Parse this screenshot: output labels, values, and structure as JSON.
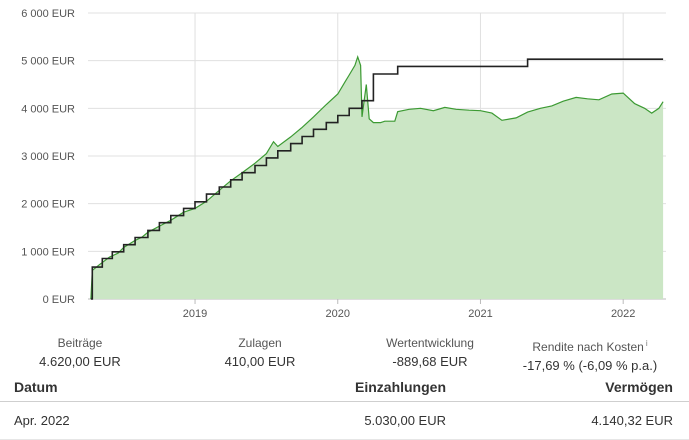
{
  "chart_data": {
    "type": "area",
    "y_ticks": [
      "6 000 EUR",
      "5 000 EUR",
      "4 000 EUR",
      "3 000 EUR",
      "2 000 EUR",
      "1 000 EUR",
      "0 EUR"
    ],
    "y_tick_values": [
      6000,
      5000,
      4000,
      3000,
      2000,
      1000,
      0
    ],
    "x_ticks": [
      "2019",
      "2020",
      "2021",
      "2022"
    ],
    "x_tick_values": [
      2019.0,
      2020.0,
      2021.0,
      2022.0
    ],
    "xlim": [
      2018.25,
      2022.3
    ],
    "ylim": [
      0,
      6000
    ],
    "grid": true,
    "legend": "none",
    "colors": {
      "area_fill": "#cbe6c5",
      "value_line": "#3c9a33",
      "deposits_line": "#222222",
      "grid": "#e0e0e0"
    },
    "series": [
      {
        "type": "step",
        "points": [
          [
            2018.27,
            0
          ],
          [
            2018.28,
            670
          ],
          [
            2018.35,
            850
          ],
          [
            2018.42,
            990
          ],
          [
            2018.5,
            1140
          ],
          [
            2018.58,
            1290
          ],
          [
            2018.67,
            1440
          ],
          [
            2018.75,
            1600
          ],
          [
            2018.83,
            1750
          ],
          [
            2018.92,
            1900
          ],
          [
            2019.0,
            2040
          ],
          [
            2019.08,
            2200
          ],
          [
            2019.17,
            2350
          ],
          [
            2019.25,
            2500
          ],
          [
            2019.33,
            2650
          ],
          [
            2019.42,
            2800
          ],
          [
            2019.5,
            2960
          ],
          [
            2019.58,
            3110
          ],
          [
            2019.67,
            3260
          ],
          [
            2019.75,
            3410
          ],
          [
            2019.83,
            3560
          ],
          [
            2019.92,
            3700
          ],
          [
            2020.0,
            3850
          ],
          [
            2020.08,
            4000
          ],
          [
            2020.17,
            4160
          ],
          [
            2020.25,
            4720
          ],
          [
            2020.42,
            4880
          ],
          [
            2021.33,
            5030
          ],
          [
            2022.28,
            5030
          ]
        ]
      },
      {
        "type": "area",
        "points": [
          [
            2018.27,
            0
          ],
          [
            2018.28,
            600
          ],
          [
            2018.33,
            720
          ],
          [
            2018.4,
            880
          ],
          [
            2018.46,
            960
          ],
          [
            2018.5,
            1080
          ],
          [
            2018.58,
            1230
          ],
          [
            2018.63,
            1300
          ],
          [
            2018.67,
            1400
          ],
          [
            2018.75,
            1530
          ],
          [
            2018.83,
            1650
          ],
          [
            2018.92,
            1820
          ],
          [
            2019.0,
            1900
          ],
          [
            2019.08,
            2050
          ],
          [
            2019.17,
            2280
          ],
          [
            2019.25,
            2480
          ],
          [
            2019.33,
            2650
          ],
          [
            2019.42,
            2850
          ],
          [
            2019.5,
            3050
          ],
          [
            2019.55,
            3300
          ],
          [
            2019.58,
            3200
          ],
          [
            2019.67,
            3400
          ],
          [
            2019.75,
            3600
          ],
          [
            2019.83,
            3820
          ],
          [
            2019.92,
            4080
          ],
          [
            2020.0,
            4300
          ],
          [
            2020.05,
            4550
          ],
          [
            2020.08,
            4700
          ],
          [
            2020.12,
            4900
          ],
          [
            2020.14,
            5080
          ],
          [
            2020.16,
            4900
          ],
          [
            2020.17,
            3820
          ],
          [
            2020.2,
            4500
          ],
          [
            2020.22,
            3780
          ],
          [
            2020.25,
            3700
          ],
          [
            2020.3,
            3700
          ],
          [
            2020.33,
            3730
          ],
          [
            2020.4,
            3730
          ],
          [
            2020.42,
            3930
          ],
          [
            2020.5,
            3980
          ],
          [
            2020.58,
            4000
          ],
          [
            2020.67,
            3950
          ],
          [
            2020.75,
            4020
          ],
          [
            2020.83,
            3980
          ],
          [
            2020.92,
            3960
          ],
          [
            2021.0,
            3950
          ],
          [
            2021.08,
            3900
          ],
          [
            2021.15,
            3750
          ],
          [
            2021.25,
            3800
          ],
          [
            2021.33,
            3920
          ],
          [
            2021.42,
            4000
          ],
          [
            2021.5,
            4050
          ],
          [
            2021.58,
            4150
          ],
          [
            2021.67,
            4230
          ],
          [
            2021.75,
            4200
          ],
          [
            2021.83,
            4180
          ],
          [
            2021.92,
            4300
          ],
          [
            2022.0,
            4320
          ],
          [
            2022.08,
            4100
          ],
          [
            2022.15,
            4000
          ],
          [
            2022.2,
            3900
          ],
          [
            2022.25,
            4000
          ],
          [
            2022.28,
            4140
          ]
        ]
      }
    ]
  },
  "stats": [
    {
      "label": "Beiträge",
      "value": "4.620,00 EUR",
      "sup": ""
    },
    {
      "label": "Zulagen",
      "value": "410,00 EUR",
      "sup": ""
    },
    {
      "label": "Wertentwicklung",
      "value": "-889,68 EUR",
      "sup": ""
    },
    {
      "label": "Rendite nach Kosten",
      "value": "-17,69 % (-6,09 % p.a.)",
      "sup": "i"
    }
  ],
  "table": {
    "headers": [
      "Datum",
      "Einzahlungen",
      "Vermögen"
    ],
    "rows": [
      [
        "Apr. 2022",
        "5.030,00 EUR",
        "4.140,32 EUR"
      ]
    ]
  }
}
